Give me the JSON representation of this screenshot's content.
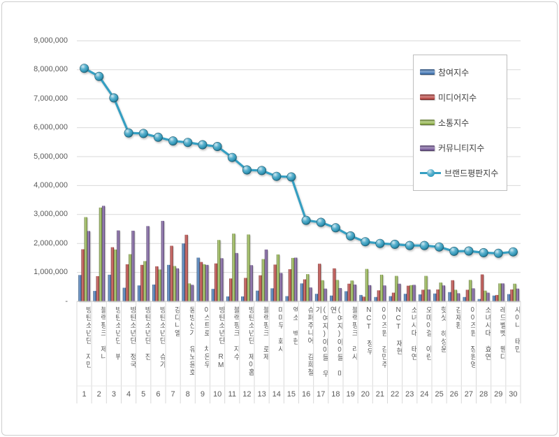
{
  "chart_data": {
    "type": "bar",
    "subtype": "clustered-bars-with-line-overlay",
    "title": "",
    "categories": [
      "방탄소년단 지민",
      "블랙핑크 제니",
      "방탄소년단 뷔",
      "방탄소년단 정국",
      "방탄소년단 진",
      "방탄소년단 슈가",
      "강다니엘",
      "동방신기 유노윤호",
      "아스트로 차은우",
      "방탄소년단 RM",
      "블랙핑크 지수",
      "방탄소년단 제이홉",
      "블랙핑크 로제",
      "마마무 화사",
      "엑소 백현",
      "슈퍼주니어 김희철",
      "(여자)아이들 우기",
      "(여자)아이들 미연",
      "블랙핑크 리사",
      "NCT 정우",
      "아이즈원 김민주",
      "NCT 재현",
      "소녀시대 태연",
      "오마이걸 아린",
      "핫샷 하성운",
      "김재환",
      "아이즈원 장원영",
      "소녀시대 효연",
      "레드벨벳 웬디",
      "샤이니 태민"
    ],
    "ranks": [
      1,
      2,
      3,
      4,
      5,
      6,
      7,
      8,
      9,
      10,
      11,
      12,
      13,
      14,
      15,
      16,
      17,
      18,
      19,
      20,
      21,
      22,
      23,
      24,
      25,
      26,
      27,
      28,
      29,
      30
    ],
    "series": [
      {
        "name": "참여지수",
        "type": "bar",
        "color": "#4f81bd",
        "values": [
          910000,
          360000,
          920000,
          470000,
          550000,
          580000,
          1260000,
          2000000,
          1510000,
          430000,
          170000,
          170000,
          370000,
          450000,
          180000,
          620000,
          260000,
          200000,
          350000,
          220000,
          150000,
          180000,
          260000,
          240000,
          270000,
          320000,
          150000,
          80000,
          200000,
          250000
        ]
      },
      {
        "name": "미디어지수",
        "type": "bar",
        "color": "#c0504d",
        "values": [
          1800000,
          870000,
          1870000,
          1280000,
          1260000,
          1210000,
          1920000,
          2300000,
          1360000,
          1310000,
          790000,
          810000,
          900000,
          1270000,
          1110000,
          760000,
          1300000,
          1140000,
          610000,
          160000,
          380000,
          300000,
          540000,
          400000,
          410000,
          730000,
          400000,
          930000,
          220000,
          410000
        ]
      },
      {
        "name": "소통지수",
        "type": "bar",
        "color": "#9bbb59",
        "values": [
          2910000,
          3240000,
          1790000,
          1630000,
          1390000,
          1100000,
          1220000,
          620000,
          1280000,
          2120000,
          2340000,
          2310000,
          1460000,
          1620000,
          1500000,
          940000,
          730000,
          740000,
          720000,
          1120000,
          920000,
          880000,
          560000,
          880000,
          650000,
          400000,
          740000,
          370000,
          620000,
          610000
        ]
      },
      {
        "name": "커뮤니티지수",
        "type": "bar",
        "color": "#8064a2",
        "values": [
          2430000,
          3300000,
          2450000,
          2440000,
          2600000,
          2780000,
          1140000,
          570000,
          1260000,
          1490000,
          1670000,
          1250000,
          1790000,
          980000,
          1510000,
          480000,
          440000,
          460000,
          580000,
          560000,
          550000,
          610000,
          570000,
          410000,
          550000,
          280000,
          450000,
          300000,
          620000,
          440000
        ]
      },
      {
        "name": "브랜드평판지수",
        "type": "line",
        "color": "#359fc2",
        "marker": "sphere",
        "values": [
          8050000,
          7770000,
          7030000,
          5820000,
          5800000,
          5670000,
          5540000,
          5490000,
          5410000,
          5350000,
          4970000,
          4540000,
          4520000,
          4320000,
          4300000,
          2800000,
          2730000,
          2540000,
          2260000,
          2060000,
          2000000,
          1970000,
          1930000,
          1930000,
          1880000,
          1730000,
          1740000,
          1680000,
          1660000,
          1710000
        ]
      }
    ],
    "y_axis": {
      "min": 0,
      "max": 9000000,
      "step": 1000000,
      "tick_labels": [
        "-",
        "1,000,000",
        "2,000,000",
        "3,000,000",
        "4,000,000",
        "5,000,000",
        "6,000,000",
        "7,000,000",
        "8,000,000",
        "9,000,000"
      ]
    },
    "grid": true,
    "legend_position": "top-right"
  }
}
